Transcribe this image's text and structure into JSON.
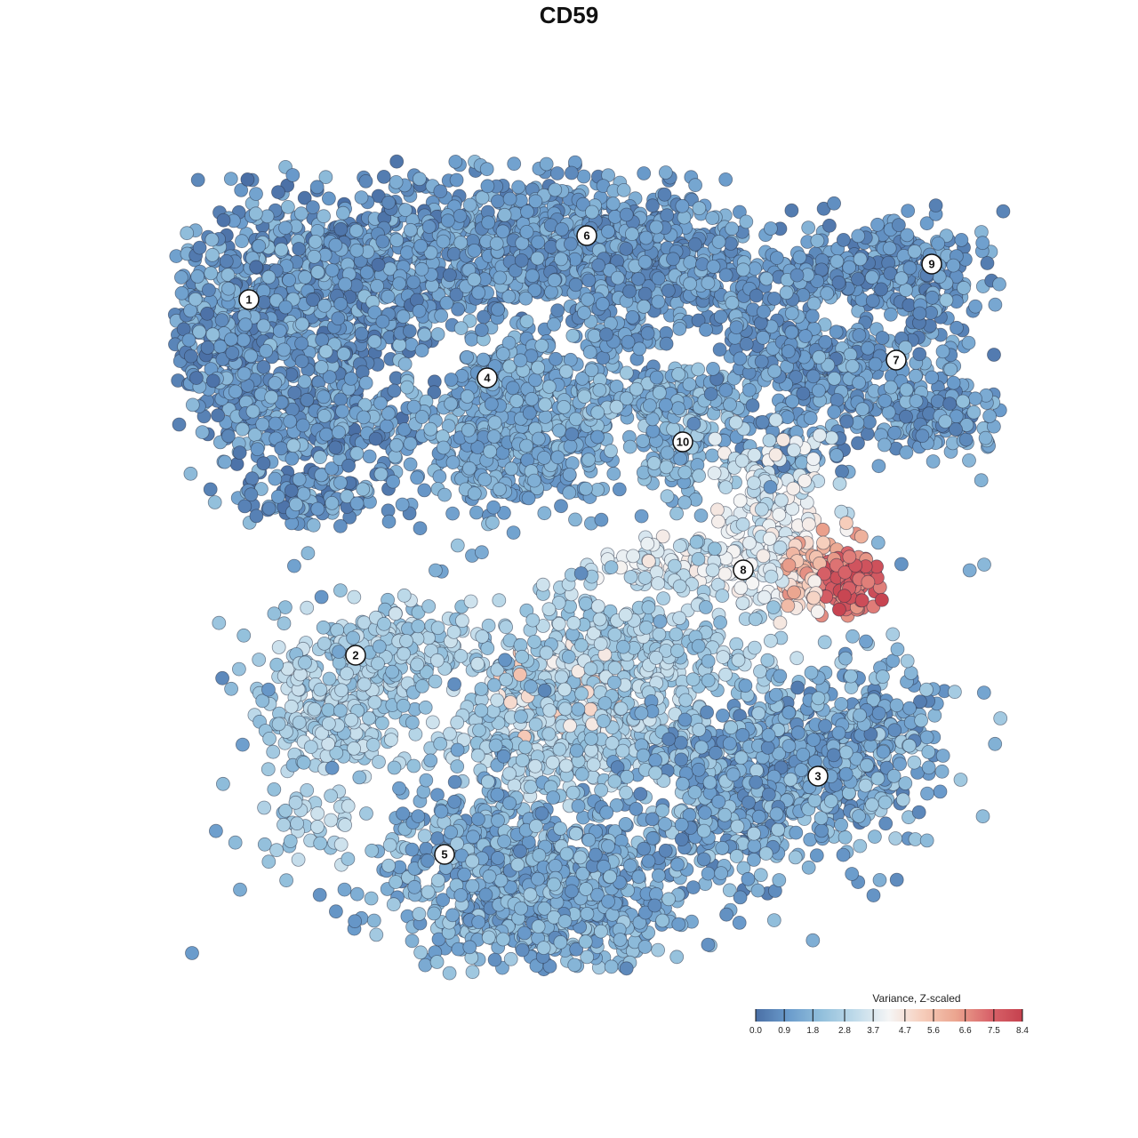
{
  "chart_data": {
    "type": "scatter",
    "title": "CD59",
    "xlabel": "",
    "ylabel": "",
    "grid": false,
    "legend_placement": "bottom-right",
    "legend_title": "Variance, Z-scaled",
    "color_scale": {
      "min": 0.0,
      "max": 8.4,
      "ticks": [
        "0.0",
        "0.9",
        "1.8",
        "2.8",
        "3.7",
        "4.7",
        "5.6",
        "6.6",
        "7.5",
        "8.4"
      ],
      "tick_values": [
        0.0,
        0.9,
        1.8,
        2.8,
        3.7,
        4.7,
        5.6,
        6.6,
        7.5,
        8.4
      ],
      "colors": [
        "#4a6fa5",
        "#6b9ccc",
        "#93c0dc",
        "#c0dbea",
        "#f5f5f5",
        "#f6cdbb",
        "#eba58f",
        "#d9656b",
        "#c5414e"
      ]
    },
    "clusters": [
      {
        "label": "1",
        "x": -9.0,
        "y": 7.2
      },
      {
        "label": "2",
        "x": -6.0,
        "y": -2.8
      },
      {
        "label": "3",
        "x": 7.0,
        "y": -6.2
      },
      {
        "label": "4",
        "x": -2.3,
        "y": 5.0
      },
      {
        "label": "5",
        "x": -3.5,
        "y": -8.4
      },
      {
        "label": "6",
        "x": 0.5,
        "y": 9.0
      },
      {
        "label": "7",
        "x": 9.2,
        "y": 5.5
      },
      {
        "label": "8",
        "x": 4.9,
        "y": -0.4
      },
      {
        "label": "9",
        "x": 10.2,
        "y": 8.2
      },
      {
        "label": "10",
        "x": 3.2,
        "y": 3.2
      }
    ],
    "cluster_value_ranges": [
      {
        "cluster": "1",
        "min": 0.0,
        "max": 2.8
      },
      {
        "cluster": "2",
        "min": 1.8,
        "max": 4.0
      },
      {
        "cluster": "3",
        "min": 0.3,
        "max": 3.5
      },
      {
        "cluster": "4",
        "min": 0.8,
        "max": 2.6
      },
      {
        "cluster": "5",
        "min": 0.6,
        "max": 3.2
      },
      {
        "cluster": "6",
        "min": 0.3,
        "max": 2.4
      },
      {
        "cluster": "7",
        "min": 0.2,
        "max": 2.6
      },
      {
        "cluster": "8",
        "min": 2.5,
        "max": 8.4
      },
      {
        "cluster": "9",
        "min": 0.2,
        "max": 2.4
      },
      {
        "cluster": "10",
        "min": 1.0,
        "max": 3.2
      }
    ]
  }
}
